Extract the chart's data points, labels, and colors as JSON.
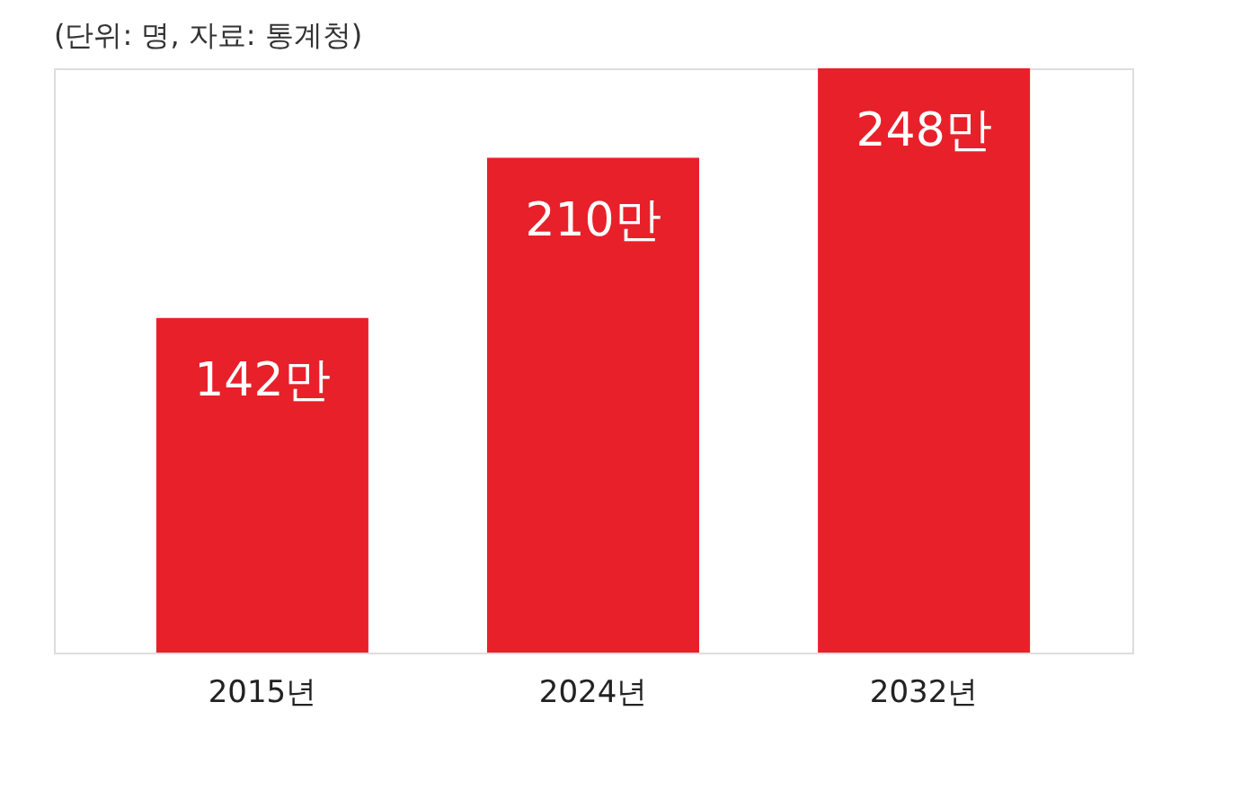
{
  "chart_data": {
    "type": "bar",
    "subtitle": "(단위: 명, 자료: 통계청)",
    "categories": [
      "2015년",
      "2024년",
      "2032년"
    ],
    "values": [
      142,
      210,
      248
    ],
    "value_labels": [
      "142만",
      "210만",
      "248만"
    ],
    "color": "#e8202a",
    "grid": false
  }
}
